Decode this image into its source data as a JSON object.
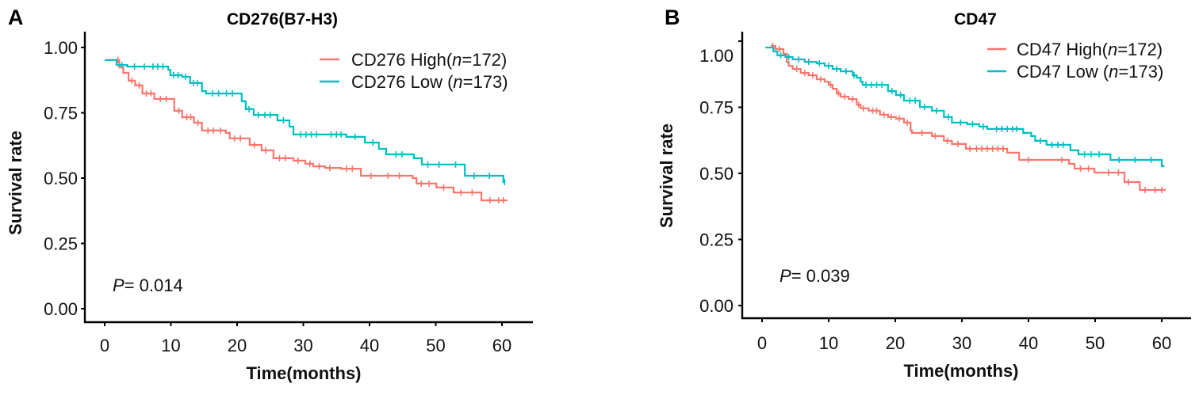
{
  "chart_data": [
    {
      "type": "line",
      "subtype": "kaplan-meier",
      "panel_label": "A",
      "title": "CD276(B7-H3)",
      "xlabel": "Time(months)",
      "ylabel": "Survival rate",
      "xlim": [
        0,
        60
      ],
      "ylim": [
        0,
        1
      ],
      "xticks": [
        "0",
        "10",
        "20",
        "30",
        "40",
        "50",
        "60"
      ],
      "yticks": [
        "0.00",
        "0.25",
        "0.50",
        "0.75",
        "1.00"
      ],
      "legend_position": "top-right",
      "annotation": {
        "p_label": "P",
        "p_text": "= 0.014",
        "p_value": 0.014
      },
      "series": [
        {
          "name": "CD276 High(n=172)",
          "legend_prefix": "CD276 High(",
          "legend_n_label": "n",
          "legend_suffix": "=172)",
          "n": 172,
          "color": "#F8766D",
          "steps": [
            [
              0.4,
              0.952
            ],
            [
              1.6,
              0.952
            ],
            [
              2.2,
              0.924
            ],
            [
              2.8,
              0.903
            ],
            [
              3.6,
              0.873
            ],
            [
              4.6,
              0.855
            ],
            [
              5.7,
              0.824
            ],
            [
              7.5,
              0.803
            ],
            [
              10.5,
              0.758
            ],
            [
              11.7,
              0.733
            ],
            [
              13.5,
              0.712
            ],
            [
              14.7,
              0.682
            ],
            [
              18.3,
              0.673
            ],
            [
              18.9,
              0.652
            ],
            [
              21.9,
              0.627
            ],
            [
              23.7,
              0.606
            ],
            [
              25.5,
              0.576
            ],
            [
              28.5,
              0.567
            ],
            [
              30.3,
              0.555
            ],
            [
              31.5,
              0.545
            ],
            [
              33.3,
              0.539
            ],
            [
              35.7,
              0.536
            ],
            [
              38.7,
              0.509
            ],
            [
              46.5,
              0.5
            ],
            [
              47.1,
              0.479
            ],
            [
              50.1,
              0.464
            ],
            [
              52.7,
              0.445
            ],
            [
              56.9,
              0.415
            ]
          ],
          "end_time": 60.8,
          "censor_times": [
            2.0,
            4.1,
            5.2,
            6.3,
            7.0,
            8.4,
            9.3,
            11.2,
            12.4,
            13.0,
            14.1,
            15.6,
            16.4,
            17.5,
            19.6,
            20.5,
            22.6,
            24.3,
            26.4,
            27.3,
            29.2,
            31.0,
            32.4,
            34.0,
            36.5,
            37.4,
            40.2,
            42.8,
            44.5,
            47.8,
            49.0,
            51.2,
            53.8,
            55.5,
            58.2,
            59.5,
            60.2
          ]
        },
        {
          "name": "CD276 Low (n=173)",
          "legend_prefix": "CD276 Low (",
          "legend_n_label": "n",
          "legend_suffix": "=173)",
          "n": 173,
          "color": "#00BFC4",
          "steps": [
            [
              0.0,
              0.952
            ],
            [
              1.8,
              0.933
            ],
            [
              3.4,
              0.927
            ],
            [
              9.6,
              0.915
            ],
            [
              9.9,
              0.894
            ],
            [
              11.7,
              0.888
            ],
            [
              12.9,
              0.864
            ],
            [
              14.7,
              0.833
            ],
            [
              15.3,
              0.824
            ],
            [
              20.7,
              0.794
            ],
            [
              21.3,
              0.764
            ],
            [
              22.5,
              0.742
            ],
            [
              26.1,
              0.721
            ],
            [
              27.9,
              0.697
            ],
            [
              28.5,
              0.667
            ],
            [
              36.5,
              0.658
            ],
            [
              39.3,
              0.636
            ],
            [
              41.4,
              0.612
            ],
            [
              42.5,
              0.591
            ],
            [
              46.7,
              0.576
            ],
            [
              47.9,
              0.552
            ],
            [
              54.4,
              0.509
            ],
            [
              60.2,
              0.485
            ]
          ],
          "end_time": 60.5,
          "censor_times": [
            2.6,
            4.5,
            6.0,
            7.3,
            8.0,
            8.8,
            10.4,
            11.1,
            12.2,
            13.4,
            14.0,
            16.3,
            17.2,
            18.4,
            19.3,
            21.8,
            23.2,
            24.2,
            25.0,
            27.0,
            29.6,
            30.4,
            31.2,
            32.0,
            34.2,
            35.0,
            35.7,
            37.8,
            40.5,
            44.0,
            44.9,
            48.8,
            50.5,
            53.0,
            55.8,
            58.1,
            60.4
          ]
        }
      ]
    },
    {
      "type": "line",
      "subtype": "kaplan-meier",
      "panel_label": "B",
      "title": "CD47",
      "xlabel": "Time(months)",
      "ylabel": "Survival rate",
      "xlim": [
        0,
        60
      ],
      "ylim": [
        0,
        1
      ],
      "xticks": [
        "0",
        "10",
        "20",
        "30",
        "40",
        "50",
        "60"
      ],
      "yticks": [
        "0.00",
        "0.25",
        "0.50",
        "0.75",
        "1.00"
      ],
      "legend_position": "top-right",
      "annotation": {
        "p_label": "P",
        "p_text": "= 0.039",
        "p_value": 0.039
      },
      "series": [
        {
          "name": "CD47 High(n=172)",
          "legend_prefix": "CD47 High(",
          "legend_n_label": "n",
          "legend_suffix": "=172)",
          "n": 172,
          "color": "#F8766D",
          "steps": [
            [
              1.3,
              0.982
            ],
            [
              2.0,
              0.97
            ],
            [
              3.2,
              0.952
            ],
            [
              3.7,
              0.922
            ],
            [
              4.0,
              0.907
            ],
            [
              4.6,
              0.895
            ],
            [
              5.8,
              0.88
            ],
            [
              7.0,
              0.871
            ],
            [
              8.2,
              0.856
            ],
            [
              9.4,
              0.847
            ],
            [
              10.0,
              0.835
            ],
            [
              10.6,
              0.82
            ],
            [
              11.2,
              0.802
            ],
            [
              11.8,
              0.79
            ],
            [
              13.0,
              0.781
            ],
            [
              14.2,
              0.76
            ],
            [
              14.8,
              0.746
            ],
            [
              16.0,
              0.737
            ],
            [
              17.7,
              0.722
            ],
            [
              18.9,
              0.713
            ],
            [
              20.1,
              0.707
            ],
            [
              21.3,
              0.692
            ],
            [
              22.3,
              0.662
            ],
            [
              22.5,
              0.653
            ],
            [
              25.5,
              0.641
            ],
            [
              27.3,
              0.623
            ],
            [
              28.5,
              0.611
            ],
            [
              30.6,
              0.593
            ],
            [
              36.8,
              0.578
            ],
            [
              38.6,
              0.551
            ],
            [
              46.1,
              0.536
            ],
            [
              46.9,
              0.518
            ],
            [
              49.9,
              0.503
            ],
            [
              54.4,
              0.467
            ],
            [
              56.7,
              0.437
            ]
          ],
          "end_time": 60.6,
          "censor_times": [
            1.6,
            2.6,
            5.2,
            6.4,
            7.6,
            8.8,
            10.3,
            11.5,
            12.4,
            13.6,
            14.5,
            15.2,
            16.6,
            17.2,
            18.3,
            19.4,
            20.6,
            21.8,
            24.0,
            26.0,
            27.8,
            29.4,
            31.2,
            32.2,
            33.0,
            33.8,
            34.6,
            35.4,
            36.2,
            40.0,
            45.0,
            47.8,
            49.0,
            52.0,
            53.5,
            55.0,
            57.5,
            59.0,
            60.0
          ]
        },
        {
          "name": "CD47 Low (n=173)",
          "legend_prefix": "CD47 Low (",
          "legend_n_label": "n",
          "legend_suffix": "=173)",
          "n": 173,
          "color": "#00BFC4",
          "steps": [
            [
              0.5,
              0.976
            ],
            [
              1.7,
              0.961
            ],
            [
              2.3,
              0.946
            ],
            [
              3.5,
              0.94
            ],
            [
              4.6,
              0.931
            ],
            [
              6.4,
              0.922
            ],
            [
              8.2,
              0.916
            ],
            [
              9.4,
              0.907
            ],
            [
              10.6,
              0.895
            ],
            [
              11.8,
              0.886
            ],
            [
              13.6,
              0.871
            ],
            [
              14.2,
              0.862
            ],
            [
              14.8,
              0.847
            ],
            [
              15.1,
              0.835
            ],
            [
              18.9,
              0.811
            ],
            [
              20.1,
              0.796
            ],
            [
              21.3,
              0.775
            ],
            [
              23.7,
              0.751
            ],
            [
              25.5,
              0.737
            ],
            [
              27.3,
              0.713
            ],
            [
              28.5,
              0.692
            ],
            [
              30.8,
              0.686
            ],
            [
              32.6,
              0.677
            ],
            [
              33.8,
              0.668
            ],
            [
              39.2,
              0.653
            ],
            [
              40.4,
              0.641
            ],
            [
              41.0,
              0.623
            ],
            [
              42.7,
              0.608
            ],
            [
              46.3,
              0.587
            ],
            [
              47.5,
              0.572
            ],
            [
              52.3,
              0.551
            ],
            [
              60.0,
              0.527
            ]
          ],
          "end_time": 60.4,
          "censor_times": [
            2.8,
            4.0,
            5.5,
            7.0,
            8.6,
            10.0,
            11.2,
            12.6,
            13.8,
            15.6,
            16.4,
            17.2,
            18.0,
            19.5,
            20.8,
            22.2,
            23.0,
            24.4,
            26.2,
            28.0,
            29.8,
            31.6,
            33.2,
            35.2,
            36.0,
            36.8,
            37.6,
            38.2,
            41.8,
            43.5,
            44.4,
            45.2,
            48.4,
            49.4,
            50.6,
            53.6,
            56.0,
            58.4
          ]
        }
      ]
    }
  ]
}
